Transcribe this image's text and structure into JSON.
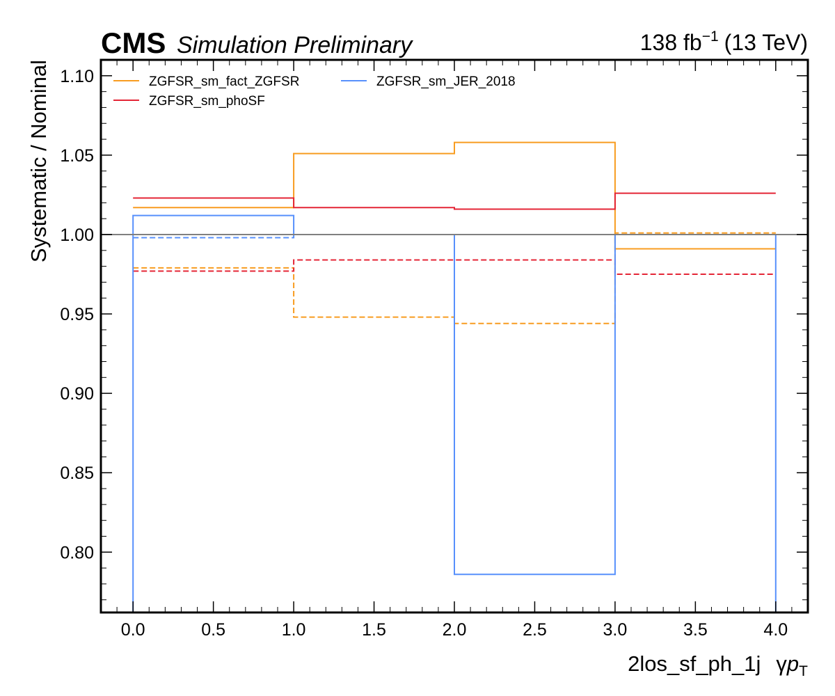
{
  "header": {
    "experiment": "CMS",
    "subtitle": "Simulation Preliminary",
    "lumi_value": "138 fb",
    "lumi_exponent": "−1",
    "energy": "(13 TeV)"
  },
  "chart_data": {
    "type": "line",
    "drawstyle": "step",
    "xlabel_region": "2los_sf_ph_1j",
    "xlabel_var_prefix": "γ",
    "xlabel_var_p": "p",
    "xlabel_var_sub": "T",
    "ylabel": "Systematic / Nominal",
    "xlim": [
      -0.2,
      4.2
    ],
    "ylim": [
      0.762,
      1.11
    ],
    "xticks": [
      0.0,
      0.5,
      1.0,
      1.5,
      2.0,
      2.5,
      3.0,
      3.5,
      4.0
    ],
    "xtick_labels": [
      "0.0",
      "0.5",
      "1.0",
      "1.5",
      "2.0",
      "2.5",
      "3.0",
      "3.5",
      "4.0"
    ],
    "yticks": [
      0.8,
      0.85,
      0.9,
      0.95,
      1.0,
      1.05,
      1.1
    ],
    "ytick_labels": [
      "0.80",
      "0.85",
      "0.90",
      "0.95",
      "1.00",
      "1.05",
      "1.10"
    ],
    "bin_edges": [
      0,
      1,
      2,
      3,
      4
    ],
    "reference_line": {
      "y": 1.0,
      "color": "#808080"
    },
    "legend": {
      "placement": "top-left",
      "columns": 2
    },
    "series": [
      {
        "name": "ZGFSR_sm_fact_ZGFSR",
        "color": "#f89c20",
        "up": [
          1.017,
          1.051,
          1.058,
          0.991
        ],
        "down": [
          0.979,
          0.948,
          0.944,
          1.001
        ]
      },
      {
        "name": "ZGFSR_sm_phoSF",
        "color": "#e42536",
        "up": [
          1.023,
          1.017,
          1.016,
          1.026
        ],
        "down": [
          0.977,
          0.984,
          0.984,
          0.975
        ]
      },
      {
        "name": "ZGFSR_sm_JER_2018",
        "color": "#5790fc",
        "up": [
          1.012,
          1.0,
          0.786,
          1.0
        ],
        "down": [
          0.998,
          1.0,
          1.0,
          1.0
        ],
        "outer_drop": true
      }
    ]
  }
}
